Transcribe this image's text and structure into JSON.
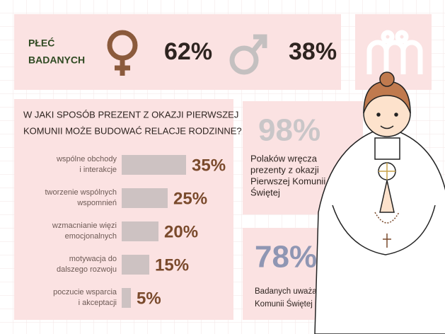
{
  "gender": {
    "title_line1": "PŁEĆ",
    "title_line2": "BADANYCH",
    "female": "62%",
    "male": "38%"
  },
  "chart_data": {
    "type": "bar",
    "orientation": "horizontal",
    "title_line1": "W JAKI SPOSÓB PREZENT Z OKAZJI PIERWSZEJ",
    "title_line2": "KOMUNII MOŻE BUDOWAĆ RELACJE RODZINNE?",
    "categories": [
      [
        "wspólne obchody",
        "i interakcje"
      ],
      [
        "tworzenie wspólnych",
        "wspomnień"
      ],
      [
        "wzmacnianie więzi",
        "emocjonalnych"
      ],
      [
        "motywacja do",
        "dalszego rozwoju"
      ],
      [
        "poczucie wsparcia",
        "i akceptacji"
      ]
    ],
    "values": [
      35,
      25,
      20,
      15,
      5
    ],
    "value_labels": [
      "35%",
      "25%",
      "20%",
      "15%",
      "5%"
    ],
    "color": "#cdc2c2",
    "label_color": "#7a4a2c"
  },
  "stat1": {
    "value": "98%",
    "lines": [
      "Polaków wręcza",
      "prezenty z okazji",
      "Pierwszej Komunii",
      "Świętej"
    ]
  },
  "stat2": {
    "value": "78%",
    "lines": [
      "Badanych uważa, że prezenty z okazji Pierwszej",
      "Komunii Świętej mogą budować relację rodzinne"
    ]
  }
}
